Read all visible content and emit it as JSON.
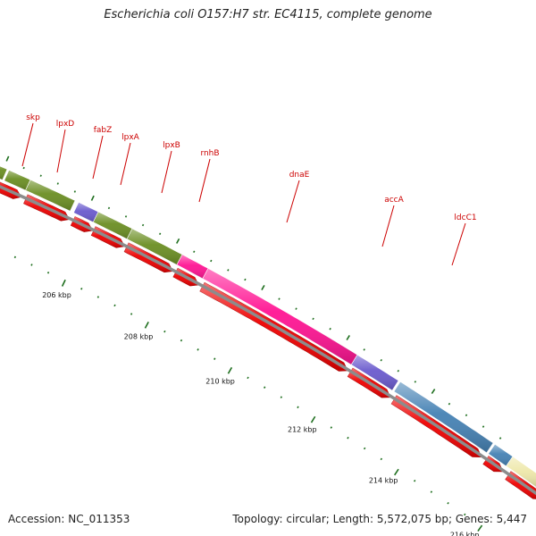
{
  "title": "Escherichia coli O157:H7 str. EC4115, complete genome",
  "footer": {
    "accession": "Accession: NC_011353",
    "summary": "Topology: circular; Length: 5,572,075 bp; Genes: 5,447"
  },
  "scale_labels": [
    "206 kbp",
    "208 kbp",
    "210 kbp",
    "212 kbp",
    "214 kbp",
    "216 kbp"
  ],
  "genes": [
    {
      "name": "skp"
    },
    {
      "name": "lpxD"
    },
    {
      "name": "fabZ"
    },
    {
      "name": "lpxA"
    },
    {
      "name": "lpxB"
    },
    {
      "name": "rnhB"
    },
    {
      "name": "dnaE"
    },
    {
      "name": "accA"
    },
    {
      "name": "ldcC1"
    }
  ],
  "colors": {
    "gene_label": "#cc0000",
    "cds_arrow": "#ee0000",
    "tick": "#1f6f1f",
    "baseline": "#8c8c8c"
  }
}
